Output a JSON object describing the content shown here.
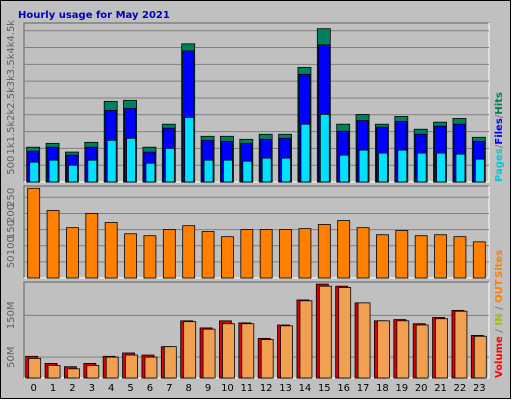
{
  "chart_data": {
    "type": "bar",
    "title": "Hourly usage for May 2021",
    "categories": [
      0,
      1,
      2,
      3,
      4,
      5,
      6,
      7,
      8,
      9,
      10,
      11,
      12,
      13,
      14,
      15,
      16,
      17,
      18,
      19,
      20,
      21,
      22,
      23
    ],
    "grid": true,
    "panels": [
      {
        "legend": [
          {
            "text": "Pages",
            "color": "#00c8e0"
          },
          {
            "text": "/",
            "color": "#808080"
          },
          {
            "text": "Files",
            "color": "#0000ff"
          },
          {
            "text": "/",
            "color": "#808080"
          },
          {
            "text": "Hits",
            "color": "#00805c"
          }
        ],
        "ylim": [
          0,
          4730
        ],
        "yticks": [
          {
            "value": 500,
            "label": "500"
          },
          {
            "value": 1000,
            "label": "1k"
          },
          {
            "value": 1500,
            "label": "1.5k"
          },
          {
            "value": 2000,
            "label": "2k"
          },
          {
            "value": 2500,
            "label": "2.5k"
          },
          {
            "value": 3000,
            "label": "3k"
          },
          {
            "value": 3500,
            "label": "3.5k"
          },
          {
            "value": 4000,
            "label": "4k"
          },
          {
            "value": 4500,
            "label": "4.5k"
          }
        ],
        "series": [
          {
            "name": "Hits",
            "color": "#00805c",
            "values": [
              1035,
              1150,
              890,
              1180,
              2400,
              2430,
              1035,
              1720,
              4110,
              1360,
              1360,
              1270,
              1420,
              1420,
              3410,
              4560,
              1720,
              2010,
              1720,
              1950,
              1570,
              1780,
              1890,
              1330
            ]
          },
          {
            "name": "Files",
            "color": "#0000ff",
            "values": [
              917,
              1035,
              800,
              1035,
              2130,
              2190,
              890,
              1600,
              3900,
              1240,
              1210,
              1150,
              1270,
              1300,
              3200,
              4080,
              1510,
              1830,
              1630,
              1800,
              1420,
              1660,
              1720,
              1210
            ]
          },
          {
            "name": "Pages",
            "color": "#00e0ff",
            "values": [
              592,
              650,
              500,
              650,
              1240,
              1300,
              560,
              1000,
              1920,
              650,
              650,
              620,
              710,
              710,
              1720,
              2010,
              800,
              950,
              860,
              950,
              860,
              860,
              830,
              680
            ]
          }
        ]
      },
      {
        "legend": [
          {
            "text": "Sites",
            "color": "#ff8000"
          }
        ],
        "ylim": [
          0,
          285
        ],
        "yticks": [
          50,
          100,
          150,
          200,
          250
        ],
        "series": [
          {
            "name": "Sites",
            "color": "#ff8000",
            "values": [
              278,
              209,
              156,
              200,
              172,
              137,
              131,
              150,
              162,
              144,
              128,
              150,
              150,
              150,
              153,
              166,
              178,
              156,
              134,
              147,
              131,
              134,
              128,
              112
            ]
          }
        ]
      },
      {
        "legend": [
          {
            "text": "Volume",
            "color": "#ff0000"
          },
          {
            "text": " / ",
            "color": "#808080"
          },
          {
            "text": "IN",
            "color": "#a0c000"
          },
          {
            "text": " / ",
            "color": "#808080"
          },
          {
            "text": "OUT",
            "color": "#ff8000"
          }
        ],
        "ylim": [
          0,
          230000000
        ],
        "yticks": [
          {
            "value": 50000000,
            "label": "50M"
          },
          {
            "value": 150000000,
            "label": "150M"
          }
        ],
        "series": [
          {
            "name": "Volume",
            "color": "#e00000",
            "values": [
              52000000,
              35000000,
              27000000,
              35000000,
              52000000,
              60000000,
              55000000,
              75000000,
              137000000,
              120000000,
              137000000,
              132000000,
              95000000,
              127000000,
              187000000,
              225000000,
              220000000,
              180000000,
              137000000,
              140000000,
              130000000,
              145000000,
              162000000,
              102000000
            ]
          },
          {
            "name": "OUT",
            "color": "#f0a050",
            "values": [
              47000000,
              30000000,
              22000000,
              30000000,
              50000000,
              55000000,
              50000000,
              75000000,
              135000000,
              117000000,
              130000000,
              130000000,
              92000000,
              125000000,
              185000000,
              220000000,
              217000000,
              180000000,
              137000000,
              137000000,
              127000000,
              142000000,
              160000000,
              100000000
            ]
          }
        ]
      }
    ]
  }
}
